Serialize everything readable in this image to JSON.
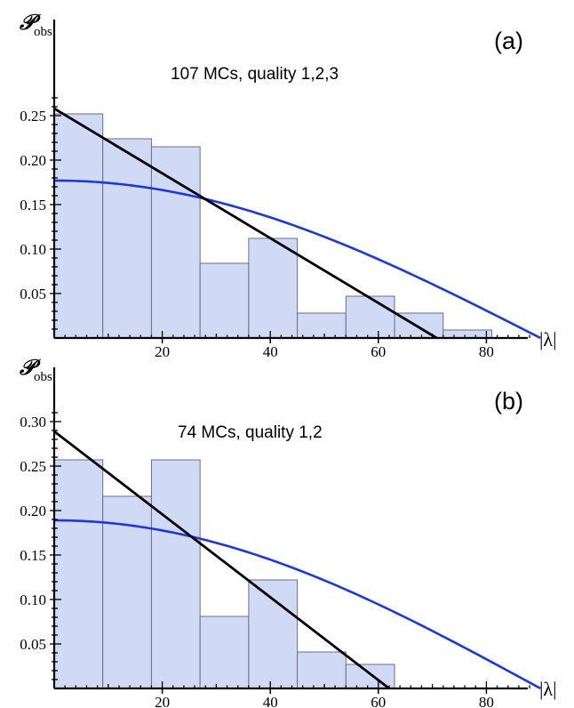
{
  "chart_data": [
    {
      "type": "bar",
      "panel_label": "(a)",
      "title": "107 MCs,  quality 1,2,3",
      "ylabel_main": "𝒫",
      "ylabel_sub": "obs",
      "xlabel": "|λ|",
      "xlim": [
        0,
        90
      ],
      "ylim": [
        0,
        0.27
      ],
      "x_ticks": [
        20,
        40,
        60,
        80
      ],
      "y_ticks": [
        0.05,
        0.1,
        0.15,
        0.2,
        0.25
      ],
      "y_tick_labels": [
        "0.05",
        "0.10",
        "0.15",
        "0.20",
        "0.25"
      ],
      "bin_width": 9,
      "bins": [
        {
          "start": 0,
          "value": 0.252
        },
        {
          "start": 9,
          "value": 0.224
        },
        {
          "start": 18,
          "value": 0.215
        },
        {
          "start": 27,
          "value": 0.084
        },
        {
          "start": 36,
          "value": 0.112
        },
        {
          "start": 45,
          "value": 0.028
        },
        {
          "start": 54,
          "value": 0.047
        },
        {
          "start": 63,
          "value": 0.028
        },
        {
          "start": 72,
          "value": 0.009
        }
      ],
      "linear_fit": {
        "x": [
          0,
          70.8
        ],
        "y": [
          0.258,
          0
        ]
      },
      "cosine_fit": {
        "amplitude": 0.177,
        "zero_at": 90
      },
      "colors": {
        "bar_fill": "#d0daf5",
        "bar_stroke": "#6a6f86",
        "linear": "#000000",
        "cosine": "#1c39d6"
      }
    },
    {
      "type": "bar",
      "panel_label": "(b)",
      "title": "74 MCs,  quality 1,2",
      "ylabel_main": "𝒫",
      "ylabel_sub": "obs",
      "xlabel": "|λ|",
      "xlim": [
        0,
        90
      ],
      "ylim": [
        0,
        0.31
      ],
      "x_ticks": [
        20,
        40,
        60,
        80
      ],
      "y_ticks": [
        0.05,
        0.1,
        0.15,
        0.2,
        0.25,
        0.3
      ],
      "y_tick_labels": [
        "0.05",
        "0.10",
        "0.15",
        "0.20",
        "0.25",
        "0.30"
      ],
      "bin_width": 9,
      "bins": [
        {
          "start": 0,
          "value": 0.257
        },
        {
          "start": 9,
          "value": 0.216
        },
        {
          "start": 18,
          "value": 0.257
        },
        {
          "start": 27,
          "value": 0.081
        },
        {
          "start": 36,
          "value": 0.122
        },
        {
          "start": 45,
          "value": 0.041
        },
        {
          "start": 54,
          "value": 0.027
        }
      ],
      "linear_fit": {
        "x": [
          0,
          62
        ],
        "y": [
          0.289,
          0
        ]
      },
      "cosine_fit": {
        "amplitude": 0.189,
        "zero_at": 90
      },
      "colors": {
        "bar_fill": "#d0daf5",
        "bar_stroke": "#6a6f86",
        "linear": "#000000",
        "cosine": "#1c39d6"
      }
    }
  ]
}
